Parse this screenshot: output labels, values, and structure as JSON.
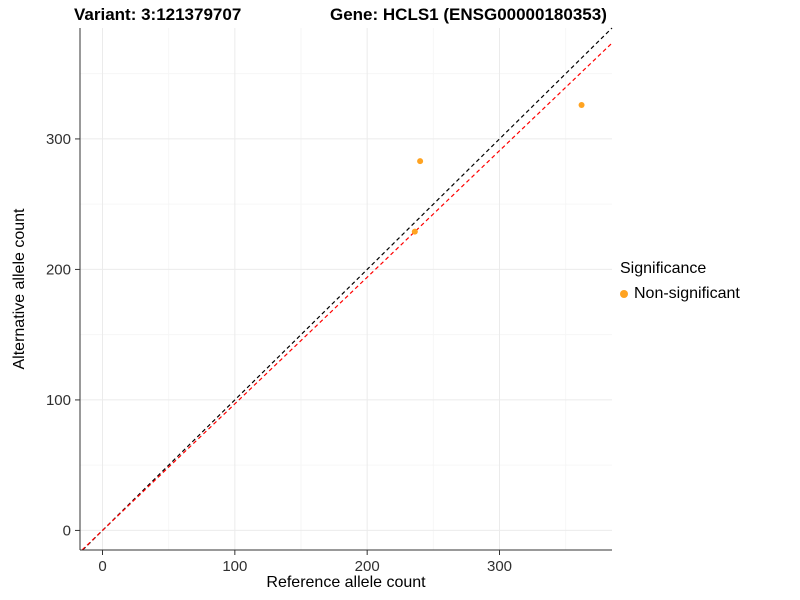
{
  "header": {
    "variant_title": "Variant: 3:121379707",
    "gene_title": "Gene: HCLS1 (ENSG00000180353)"
  },
  "legend": {
    "title": "Significance",
    "items": [
      {
        "label": "Non-significant",
        "color": "#FFA321"
      }
    ]
  },
  "chart_data": {
    "type": "scatter",
    "title": "",
    "xlabel": "Reference allele count",
    "ylabel": "Alternative allele count",
    "xlim": [
      -17,
      385
    ],
    "ylim": [
      -15,
      385
    ],
    "xticks": [
      0,
      100,
      200,
      300
    ],
    "yticks": [
      0,
      100,
      200,
      300
    ],
    "minor_xticks": [
      50,
      150,
      250,
      350
    ],
    "minor_yticks": [
      50,
      150,
      250,
      350
    ],
    "grid": true,
    "legend_position": "right",
    "points": [
      {
        "x": 240,
        "y": 283,
        "series": "Non-significant"
      },
      {
        "x": 236,
        "y": 229,
        "series": "Non-significant"
      },
      {
        "x": 362,
        "y": 326,
        "series": "Non-significant"
      }
    ],
    "point_color": "#FFA321",
    "point_radius": 3,
    "lines": [
      {
        "name": "identity-line",
        "slope": 1,
        "intercept": 0,
        "color": "#000000",
        "dash": "4,3"
      },
      {
        "name": "fit-line",
        "slope": 0.97,
        "intercept": 0,
        "color": "#FF0000",
        "dash": "4,3"
      }
    ],
    "colors": {
      "grid_major": "#EBEBEB",
      "grid_minor": "#F6F6F6",
      "axis": "#333333",
      "tick_text": "#303030"
    }
  }
}
